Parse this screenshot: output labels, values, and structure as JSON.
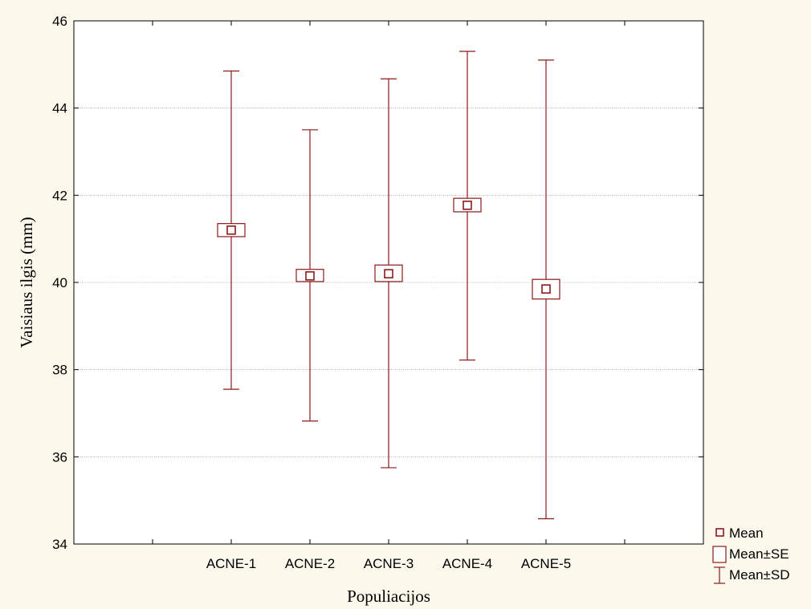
{
  "chart_data": {
    "type": "box",
    "xlabel": "Populiacijos",
    "ylabel": "Vaisiaus ilgis (mm)",
    "ylim": [
      34,
      46
    ],
    "yticks": [
      34,
      36,
      38,
      40,
      42,
      44,
      46
    ],
    "categories": [
      "ACNE-1",
      "ACNE-2",
      "ACNE-3",
      "ACNE-4",
      "ACNE-5"
    ],
    "series": [
      {
        "name": "Mean",
        "values": [
          41.2,
          40.15,
          40.2,
          41.77,
          39.85
        ]
      },
      {
        "name": "Mean±SE",
        "low": [
          41.05,
          40.02,
          40.02,
          41.62,
          39.62
        ],
        "high": [
          41.35,
          40.3,
          40.4,
          41.93,
          40.07
        ]
      },
      {
        "name": "Mean±SD",
        "low": [
          37.55,
          36.82,
          35.75,
          38.22,
          34.58
        ],
        "high": [
          44.85,
          43.5,
          44.67,
          45.3,
          45.1
        ]
      }
    ],
    "grid": true,
    "legend_position": "bottom-right",
    "color": "#8b1a1a"
  }
}
